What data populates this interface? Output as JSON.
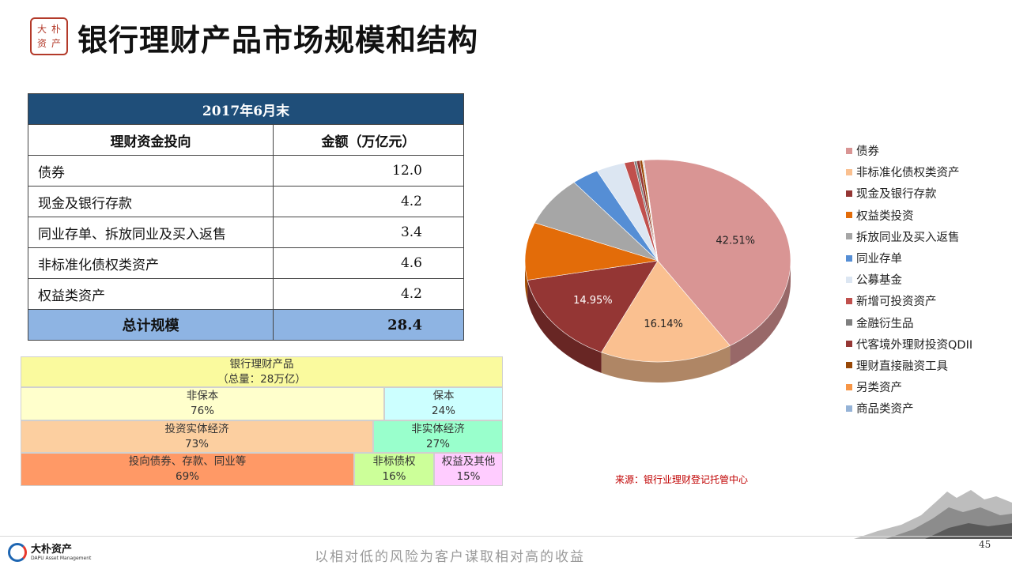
{
  "seal": {
    "chars": [
      "大",
      "朴",
      "资",
      "产"
    ]
  },
  "page_title": "银行理财产品市场规模和结构",
  "table": {
    "period": "2017年6月末",
    "headers": [
      "理财资金投向",
      "金额（万亿元）"
    ],
    "rows": [
      {
        "label": "债券",
        "value": "12.0"
      },
      {
        "label": "现金及银行存款",
        "value": "4.2"
      },
      {
        "label": "同业存单、拆放同业及买入返售",
        "value": "3.4"
      },
      {
        "label": "非标准化债权类资产",
        "value": "4.6"
      },
      {
        "label": "权益类资产",
        "value": "4.2"
      }
    ],
    "total_label": "总计规模",
    "total_value": "28.4"
  },
  "tree": {
    "root": {
      "label": "银行理财产品",
      "sub": "（总量：28万亿）"
    },
    "l1a": {
      "label": "非保本",
      "pct": "76%"
    },
    "l1b": {
      "label": "保本",
      "pct": "24%"
    },
    "l2a": {
      "label": "投资实体经济",
      "pct": "73%"
    },
    "l2b": {
      "label": "非实体经济",
      "pct": "27%"
    },
    "l3a": {
      "label": "投向债券、存款、同业等",
      "pct": "69%"
    },
    "l3b": {
      "label": "非标债权",
      "pct": "16%"
    },
    "l3c": {
      "label": "权益及其他",
      "pct": "15%"
    },
    "colors": {
      "root": "#fafa9e",
      "l1a": "#ffffcc",
      "l1b": "#ccffff",
      "l2a": "#fccfa0",
      "l2b": "#99ffcc",
      "l3a": "#ff9966",
      "l3b": "#ccff99",
      "l3c": "#ffccff"
    }
  },
  "chart_data": {
    "type": "pie",
    "title": "",
    "legend_position": "right",
    "categories": [
      "债券",
      "非标准化债权类资产",
      "现金及银行存款",
      "权益类投资",
      "拆放同业及买入返售",
      "同业存单",
      "公募基金",
      "新增可投资资产",
      "金融衍生品",
      "代客境外理财投资QDII",
      "理财直接融资工具",
      "另类资产",
      "商品类资产"
    ],
    "values": [
      42.51,
      16.14,
      14.95,
      9.2,
      8.0,
      3.3,
      3.5,
      1.2,
      0.3,
      0.4,
      0.3,
      0.1,
      0.1
    ],
    "data_labels": [
      "42.51%",
      "16.14%",
      "14.95%",
      "",
      "",
      "",
      "",
      "",
      "",
      "",
      "",
      "",
      ""
    ],
    "colors": [
      "#d99594",
      "#fac090",
      "#943634",
      "#e36c09",
      "#a6a6a6",
      "#558ed5",
      "#dce6f2",
      "#c0504d",
      "#7f7f7f",
      "#953735",
      "#984807",
      "#f79646",
      "#95b3d7"
    ]
  },
  "source": "来源：银行业理财登记托管中心",
  "footer": {
    "logo_cn": "大朴资产",
    "logo_en": "DAPU Asset Management",
    "slogan": "以相对低的风险为客户谋取相对高的收益",
    "page_number": "45"
  }
}
